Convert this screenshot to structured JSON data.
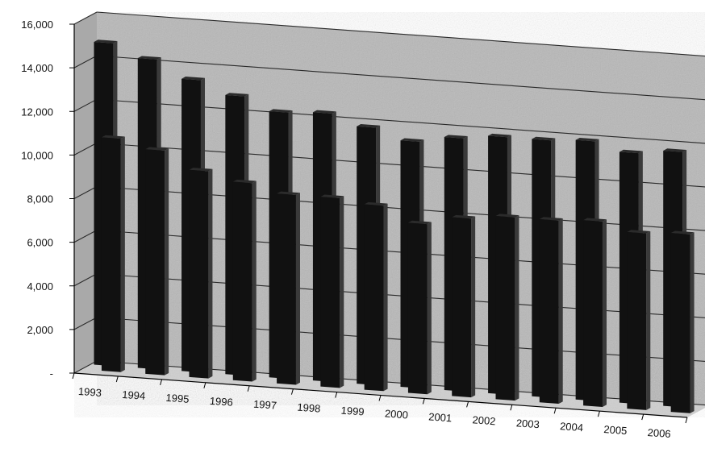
{
  "chart_data": {
    "type": "bar",
    "categories": [
      "1993",
      "1994",
      "1995",
      "1996",
      "1997",
      "1998",
      "1999",
      "2000",
      "2001",
      "2002",
      "2003",
      "2004",
      "2005",
      "2006"
    ],
    "series": [
      {
        "values": [
          10700,
          10300,
          9500,
          9100,
          8700,
          8700,
          8500,
          7800,
          8200,
          8400,
          8400,
          8500,
          8100,
          8200
        ]
      },
      {
        "values": [
          14800,
          14200,
          13400,
          12800,
          12200,
          12300,
          11800,
          11300,
          11600,
          11800,
          11800,
          11900,
          11500,
          11700
        ]
      }
    ],
    "ylim": [
      0,
      16000
    ],
    "y_ticks": [
      {
        "value": 0,
        "label": "-"
      },
      {
        "value": 2000,
        "label": "2,000"
      },
      {
        "value": 4000,
        "label": "4,000"
      },
      {
        "value": 6000,
        "label": "6,000"
      },
      {
        "value": 8000,
        "label": "8,000"
      },
      {
        "value": 10000,
        "label": "10,000"
      },
      {
        "value": 12000,
        "label": "12,000"
      },
      {
        "value": 14000,
        "label": "14,000"
      },
      {
        "value": 16000,
        "label": "16,000"
      }
    ],
    "grid": true,
    "three_d": true,
    "colors": {
      "bars": "#111111",
      "bar_side": "#3a3a3a",
      "wall": "#b8b8b8",
      "floor": "#cfcfcf",
      "grid": "#2a2a2a"
    }
  }
}
